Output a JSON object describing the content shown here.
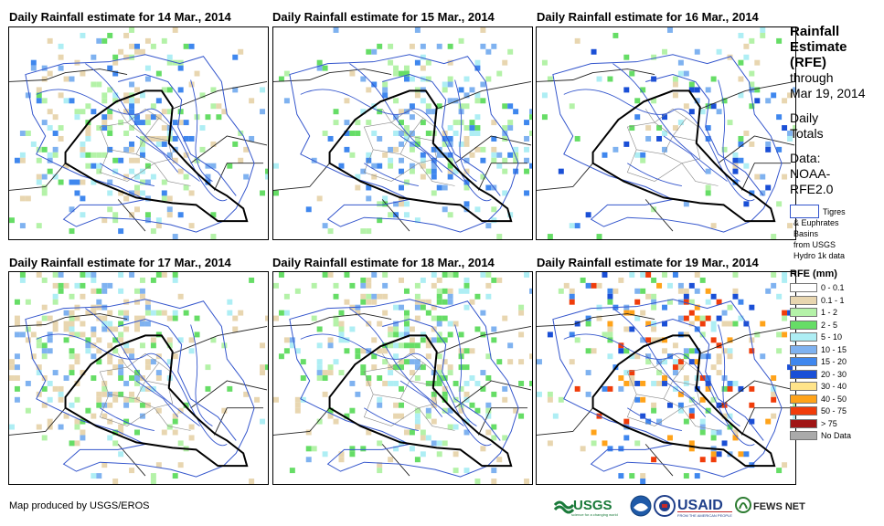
{
  "panels": [
    {
      "title": "Daily Rainfall estimate for 14 Mar., 2014"
    },
    {
      "title": "Daily Rainfall estimate for 15 Mar., 2014"
    },
    {
      "title": "Daily Rainfall estimate for 16 Mar., 2014"
    },
    {
      "title": "Daily Rainfall estimate for 17 Mar., 2014"
    },
    {
      "title": "Daily Rainfall estimate for 18 Mar., 2014"
    },
    {
      "title": "Daily Rainfall estimate for 19 Mar., 2014"
    }
  ],
  "side": {
    "line1": "Rainfall",
    "line2": "Estimate",
    "line3": "(RFE)",
    "line4": "through",
    "line5": "Mar 19, 2014",
    "line6": "Daily",
    "line7": "Totals",
    "line8": "Data:",
    "line9": "NOAA-",
    "line10": "RFE2.0",
    "basin_line1": "Tigres",
    "basin_line2": "& Euphrates",
    "basin_line3": "Basins",
    "basin_line4": "from USGS",
    "basin_line5": "Hydro 1k data"
  },
  "legend": {
    "title": "RFE (mm)",
    "classes": [
      {
        "label": "0 - 0.1",
        "color": "#ffffff"
      },
      {
        "label": "0.1 - 1",
        "color": "#e8d6b0"
      },
      {
        "label": "1 - 2",
        "color": "#b4f2a8"
      },
      {
        "label": "2 - 5",
        "color": "#66dd66"
      },
      {
        "label": "5 - 10",
        "color": "#aeeef4"
      },
      {
        "label": "10 - 15",
        "color": "#7fb2f0"
      },
      {
        "label": "15 - 20",
        "color": "#3f87ee"
      },
      {
        "label": "20 - 30",
        "color": "#1a4fd6"
      },
      {
        "label": "30 - 40",
        "color": "#ffe48a"
      },
      {
        "label": "40 - 50",
        "color": "#ffa31a"
      },
      {
        "label": "50 - 75",
        "color": "#f03c0a"
      },
      {
        "label": "> 75",
        "color": "#a01414"
      },
      {
        "label": "No Data",
        "color": "#aaaaaa"
      }
    ]
  },
  "footer": {
    "credit": "Map produced by USGS/EROS",
    "logo_usgs": "USGS",
    "logo_usgs_tagline": "science for a changing world",
    "logo_usaid": "USAID",
    "logo_usaid_tagline": "FROM THE AMERICAN PEOPLE",
    "logo_fews": "FEWS NET"
  }
}
